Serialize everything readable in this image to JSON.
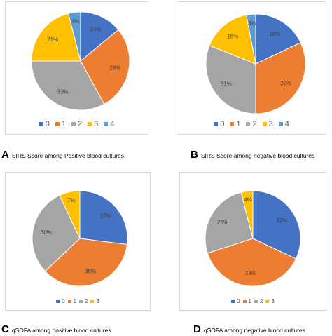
{
  "colors": [
    "#4472c4",
    "#ed7d31",
    "#a5a5a5",
    "#ffc000",
    "#5b9bd5"
  ],
  "panels": [
    {
      "letter": "A",
      "caption": "SIRS Score among Positive blood cultures",
      "chart_data": {
        "type": "pie",
        "categories": [
          "0",
          "1",
          "2",
          "3",
          "4"
        ],
        "values": [
          14,
          28,
          33,
          21,
          4
        ],
        "labels": [
          "14%",
          "28%",
          "33%",
          "21%",
          "4%"
        ]
      }
    },
    {
      "letter": "B",
      "caption": "SIRS Score among negative blood cultures",
      "chart_data": {
        "type": "pie",
        "categories": [
          "0",
          "1",
          "2",
          "3",
          "4"
        ],
        "values": [
          18,
          32,
          31,
          16,
          3
        ],
        "labels": [
          "18%",
          "32%",
          "31%",
          "16%",
          "3%"
        ]
      }
    },
    {
      "letter": "C",
      "caption": "qSOFA among positive blood cultures",
      "chart_data": {
        "type": "pie",
        "categories": [
          "0",
          "1",
          "2",
          "3"
        ],
        "values": [
          27,
          36,
          30,
          7
        ],
        "labels": [
          "27%",
          "36%",
          "30%",
          "7%"
        ]
      }
    },
    {
      "letter": "D",
      "caption": "qSOFA among negative blood cultures",
      "chart_data": {
        "type": "pie",
        "categories": [
          "0",
          "1",
          "2",
          "3"
        ],
        "values": [
          32,
          38,
          26,
          4
        ],
        "labels": [
          "32%",
          "38%",
          "26%",
          "4%"
        ]
      }
    }
  ]
}
